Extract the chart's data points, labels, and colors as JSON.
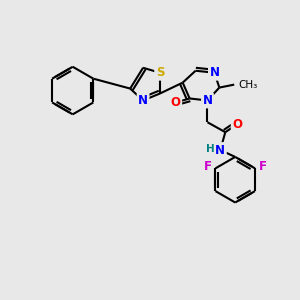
{
  "bg_color": "#e8e8e8",
  "bond_color": "#000000",
  "atom_colors": {
    "N": "#0000ff",
    "O": "#ff0000",
    "S": "#ccaa00",
    "F": "#cc00cc",
    "HN": "#008080",
    "C": "#000000"
  },
  "figsize": [
    3.0,
    3.0
  ],
  "dpi": 100
}
